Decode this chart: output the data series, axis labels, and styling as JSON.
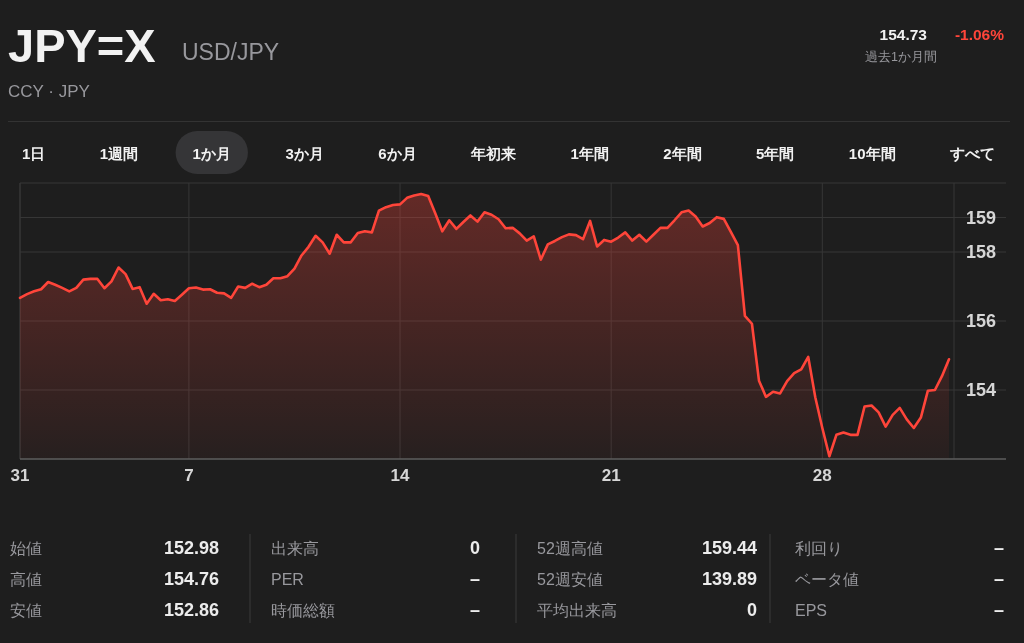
{
  "chart_data": [
    {
      "type": "area",
      "title": "JPY=X",
      "subtitle": "USD/JPY",
      "annotations": [
        "CCY · JPY",
        "154.73",
        "-1.06%",
        "過去1か月間",
        "1日",
        "1週間",
        "1か月",
        "3か月",
        "6か月",
        "年初来",
        "1年間",
        "2年間",
        "5年間",
        "10年間",
        "すべて"
      ],
      "categories": [
        "31",
        null,
        null,
        null,
        null,
        null,
        null,
        null,
        null,
        null,
        null,
        null,
        null,
        null,
        null,
        null,
        null,
        null,
        null,
        null,
        null,
        null,
        null,
        null,
        "7",
        null,
        null,
        null,
        null,
        null,
        null,
        null,
        null,
        null,
        null,
        null,
        null,
        null,
        null,
        null,
        null,
        null,
        null,
        null,
        null,
        null,
        null,
        null,
        null,
        null,
        null,
        null,
        null,
        null,
        "14",
        null,
        null,
        null,
        null,
        null,
        null,
        null,
        null,
        null,
        null,
        null,
        null,
        null,
        null,
        null,
        null,
        null,
        null,
        null,
        null,
        null,
        null,
        null,
        null,
        null,
        null,
        null,
        null,
        null,
        "21",
        null,
        null,
        null,
        null,
        null,
        null,
        null,
        null,
        null,
        null,
        null,
        null,
        null,
        null,
        null,
        null,
        null,
        null,
        null,
        null,
        null,
        null,
        null,
        null,
        null,
        null,
        null,
        null,
        null,
        "28",
        null,
        null,
        null,
        null,
        null,
        null,
        null,
        null,
        null,
        null,
        null,
        null,
        null,
        null,
        null,
        null,
        null,
        null
      ],
      "series": [
        {
          "color": "#ff453a",
          "values": [
            156.67,
            156.78,
            156.86,
            156.92,
            157.13,
            157.05,
            156.96,
            156.86,
            156.96,
            157.2,
            157.22,
            157.22,
            156.95,
            157.15,
            157.55,
            157.36,
            156.93,
            156.98,
            156.5,
            156.79,
            156.6,
            156.63,
            156.58,
            156.76,
            156.95,
            156.97,
            156.91,
            156.92,
            156.82,
            156.8,
            156.67,
            157.0,
            156.96,
            157.08,
            156.98,
            157.05,
            157.24,
            157.24,
            157.3,
            157.52,
            157.9,
            158.15,
            158.47,
            158.28,
            157.95,
            158.5,
            158.28,
            158.28,
            158.55,
            158.6,
            158.57,
            159.2,
            159.3,
            159.36,
            159.38,
            159.57,
            159.64,
            159.68,
            159.62,
            159.12,
            158.6,
            158.92,
            158.67,
            158.87,
            159.06,
            158.88,
            159.15,
            159.08,
            158.95,
            158.69,
            158.7,
            158.54,
            158.33,
            158.45,
            157.78,
            158.22,
            158.32,
            158.43,
            158.51,
            158.49,
            158.37,
            158.9,
            158.16,
            158.35,
            158.3,
            158.42,
            158.57,
            158.33,
            158.5,
            158.3,
            158.5,
            158.7,
            158.7,
            158.92,
            159.15,
            159.2,
            159.03,
            158.74,
            158.84,
            159.01,
            158.96,
            158.58,
            158.2,
            156.15,
            155.92,
            154.27,
            153.8,
            153.95,
            153.9,
            154.26,
            154.49,
            154.6,
            154.96,
            153.79,
            152.9,
            152.08,
            152.7,
            152.77,
            152.7,
            152.7,
            153.52,
            153.55,
            153.35,
            152.94,
            153.28,
            153.48,
            153.15,
            152.9,
            153.2,
            153.98,
            154.0,
            154.4,
            154.89
          ]
        }
      ],
      "ylim": [
        152,
        160
      ],
      "yticks": [
        159,
        158,
        156,
        154
      ],
      "grid": true
    },
    {
      "type": "other",
      "annotations": [
        "始値",
        "152.98",
        "高値",
        "154.76",
        "安値",
        "152.86",
        "出来高",
        "0",
        "PER",
        "–",
        "時価総額",
        "–",
        "52週高値",
        "159.44",
        "52週安値",
        "139.89",
        "平均出来高",
        "0",
        "利回り",
        "–",
        "ベータ値",
        "–",
        "EPS",
        "–"
      ]
    }
  ]
}
